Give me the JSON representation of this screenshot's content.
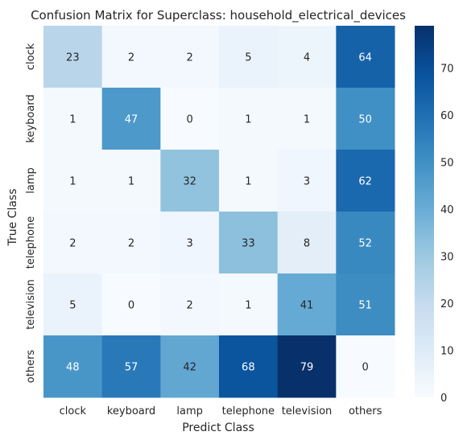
{
  "chart_data": {
    "type": "heatmap",
    "title": "Confusion Matrix for Superclass: household_electrical_devices",
    "xlabel": "Predict Class",
    "ylabel": "True Class",
    "x_categories": [
      "clock",
      "keyboard",
      "lamp",
      "telephone",
      "television",
      "others"
    ],
    "y_categories": [
      "clock",
      "keyboard",
      "lamp",
      "telephone",
      "television",
      "others"
    ],
    "values": [
      [
        23,
        2,
        2,
        5,
        4,
        64
      ],
      [
        1,
        47,
        0,
        1,
        1,
        50
      ],
      [
        1,
        1,
        32,
        1,
        3,
        62
      ],
      [
        2,
        2,
        3,
        33,
        8,
        52
      ],
      [
        5,
        0,
        2,
        1,
        41,
        51
      ],
      [
        48,
        57,
        42,
        68,
        79,
        0
      ]
    ],
    "colormap": "Blues",
    "color_range": [
      0,
      79
    ],
    "colorbar_ticks": [
      "0",
      "10",
      "20",
      "30",
      "40",
      "50",
      "60",
      "70"
    ]
  }
}
